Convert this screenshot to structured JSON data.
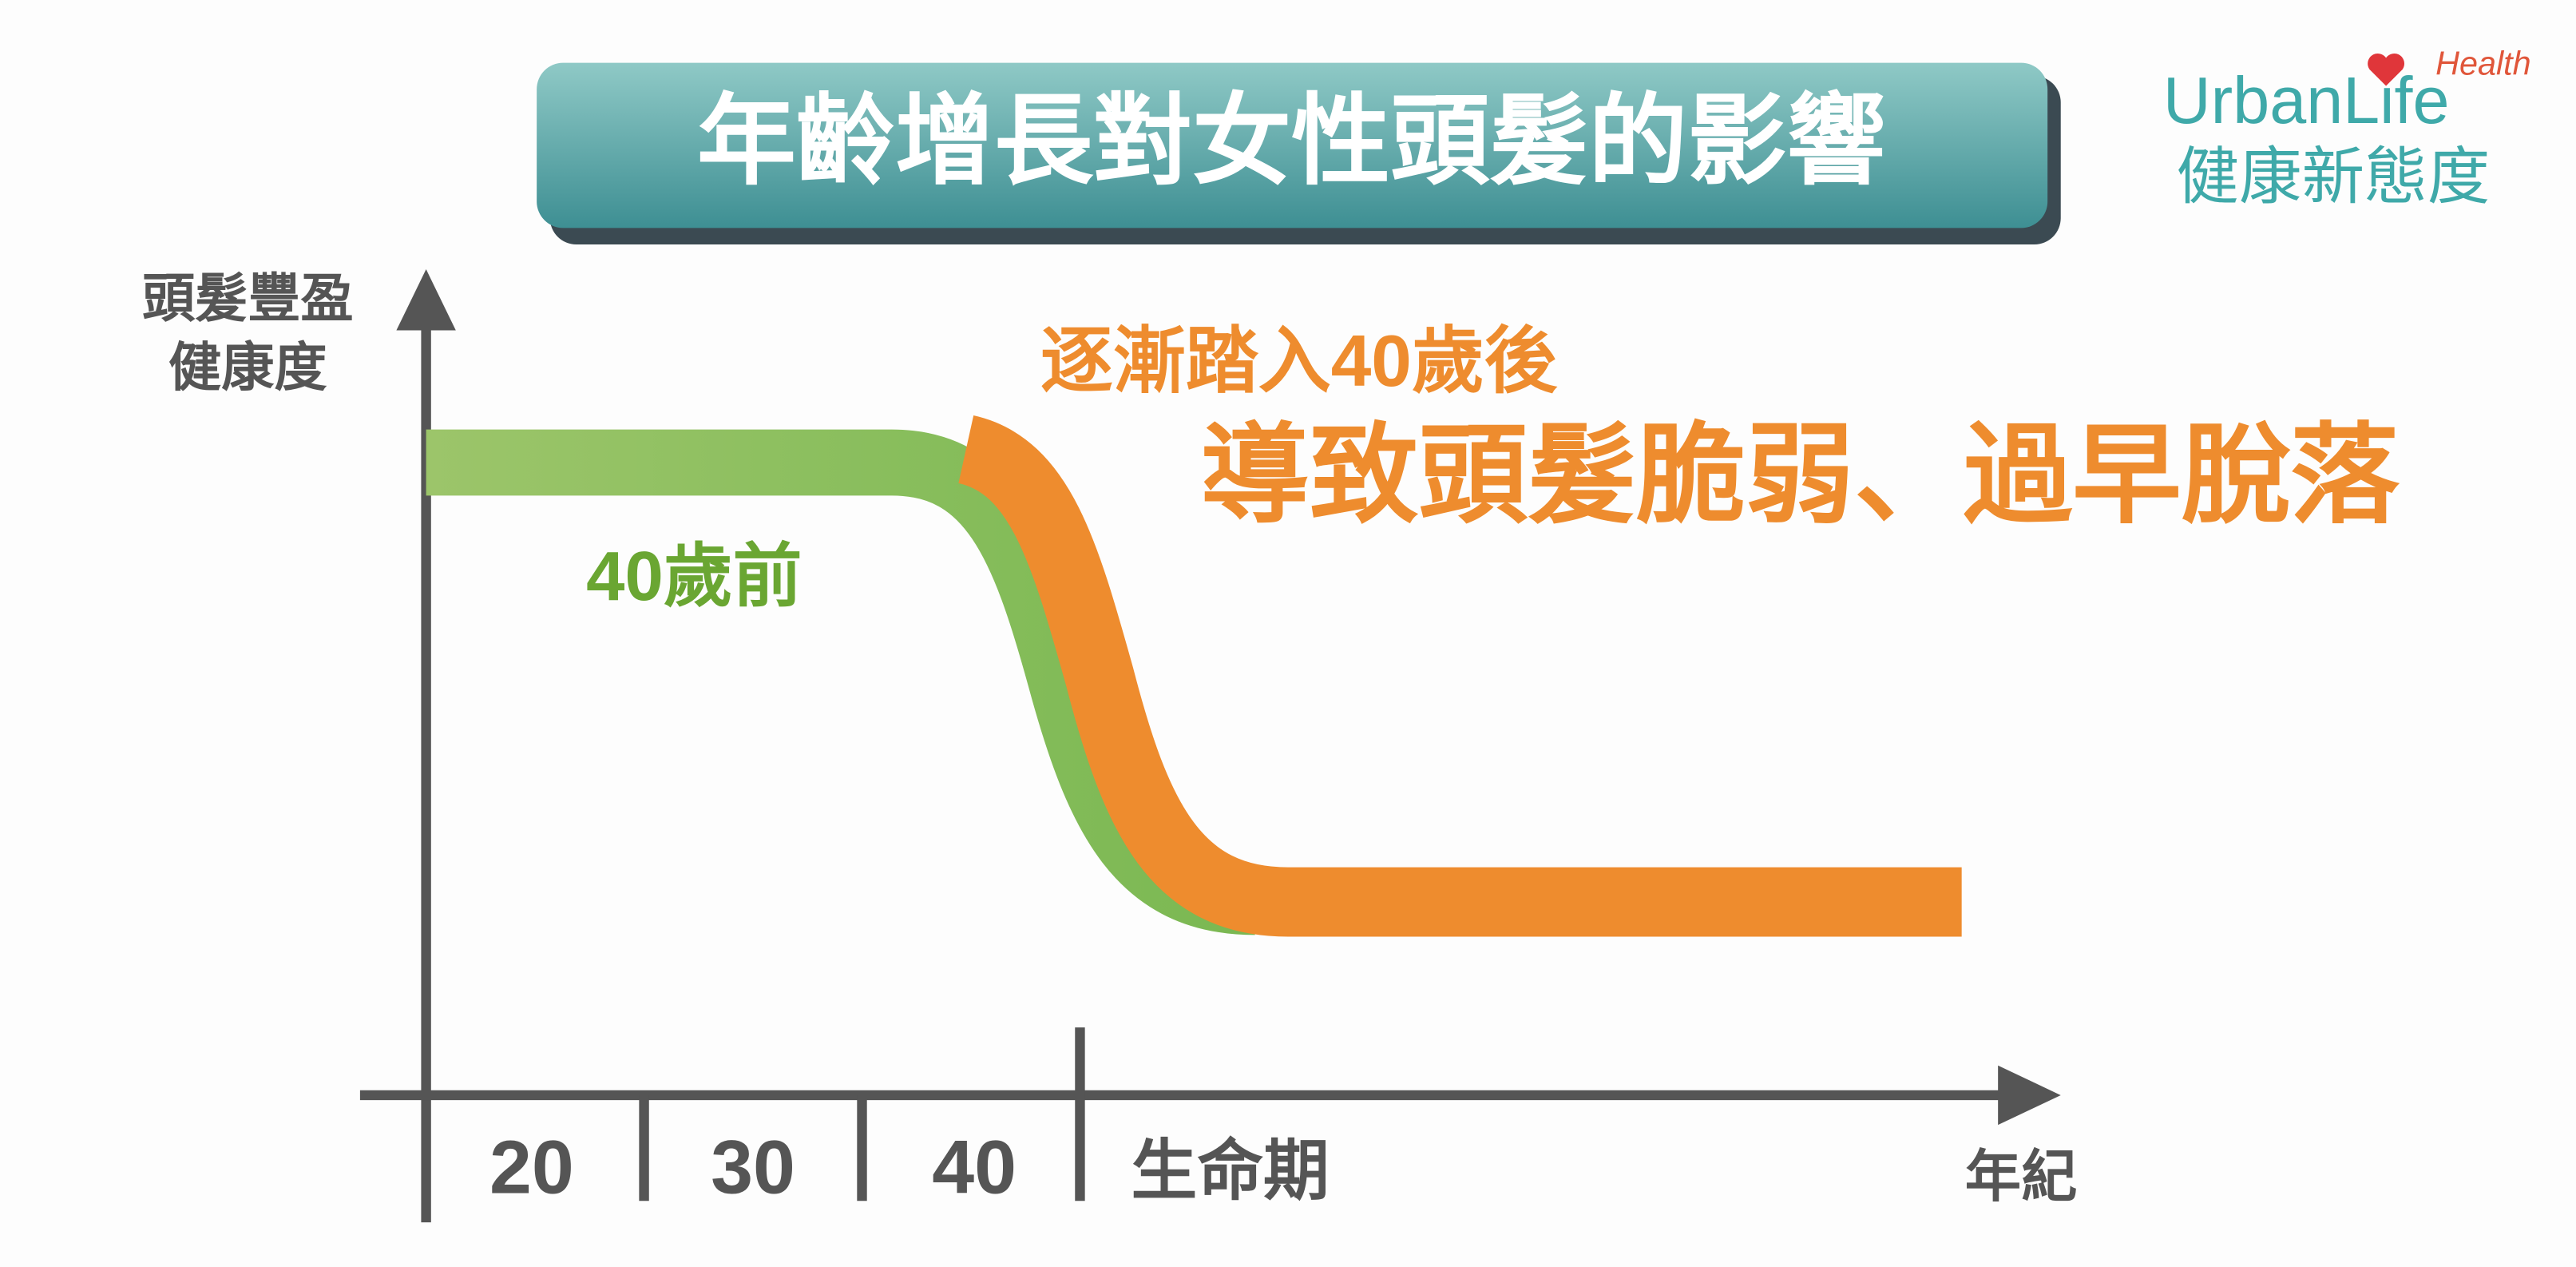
{
  "header": {
    "title": "年齡增長對女性頭髮的影響"
  },
  "logo": {
    "brand": "UrbanLife",
    "tag": "Health",
    "slogan": "健康新態度"
  },
  "y_axis": {
    "label_lines": [
      "頭髮豐盈",
      "健康度"
    ]
  },
  "x_axis": {
    "ticks": [
      "20",
      "30",
      "40"
    ],
    "stage": "生命期",
    "label": "年紀"
  },
  "annotations": {
    "before": "40歲前",
    "after_title": "逐漸踏入40歲後",
    "after_detail": "導致頭髮脆弱、過早脫落"
  }
}
